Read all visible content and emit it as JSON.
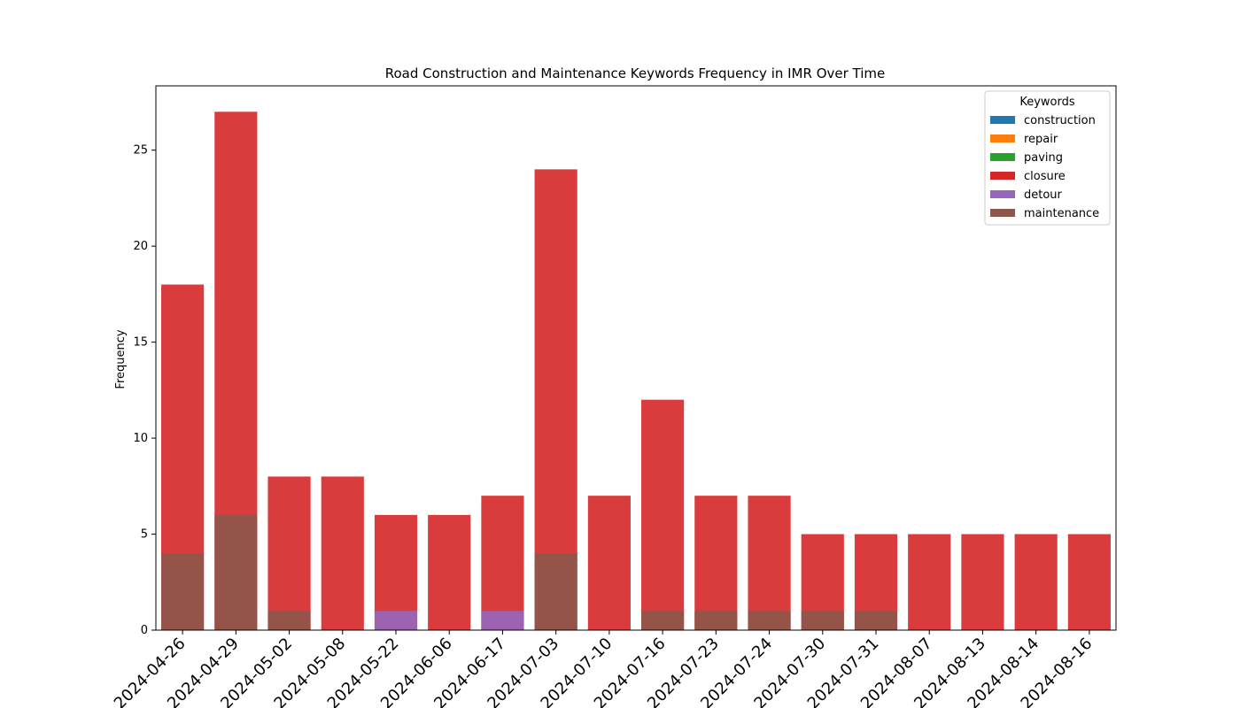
{
  "chart_data": {
    "type": "bar",
    "title": "Road Construction and Maintenance Keywords Frequency in IMR Over Time",
    "xlabel": "",
    "ylabel": "Frequency",
    "ylim": [
      0,
      28.35
    ],
    "yticks": [
      0,
      5,
      10,
      15,
      20,
      25
    ],
    "grid": false,
    "legend": {
      "title": "Keywords",
      "placement": "top-right"
    },
    "categories": [
      "2024-04-26",
      "2024-04-29",
      "2024-05-02",
      "2024-05-08",
      "2024-05-22",
      "2024-06-06",
      "2024-06-17",
      "2024-07-03",
      "2024-07-10",
      "2024-07-16",
      "2024-07-23",
      "2024-07-24",
      "2024-07-30",
      "2024-07-31",
      "2024-08-07",
      "2024-08-13",
      "2024-08-14",
      "2024-08-16"
    ],
    "series": [
      {
        "name": "construction",
        "color": "#1f77b4",
        "values": [
          0,
          0,
          0,
          0,
          0,
          0,
          0,
          0,
          0,
          0,
          0,
          0,
          0,
          0,
          0,
          0,
          0,
          0
        ]
      },
      {
        "name": "repair",
        "color": "#ff7f0e",
        "values": [
          0,
          0,
          0,
          0,
          0,
          0,
          0,
          0,
          0,
          0,
          0,
          0,
          0,
          0,
          0,
          0,
          0,
          0
        ]
      },
      {
        "name": "paving",
        "color": "#2ca02c",
        "values": [
          0,
          0,
          0,
          0,
          0,
          0,
          0,
          0,
          0,
          0,
          0,
          0,
          0,
          0,
          0,
          0,
          0,
          0
        ]
      },
      {
        "name": "closure",
        "color": "#d62728",
        "values": [
          18,
          27,
          8,
          8,
          6,
          6,
          7,
          24,
          7,
          12,
          7,
          7,
          5,
          5,
          5,
          5,
          5,
          5
        ]
      },
      {
        "name": "detour",
        "color": "#9467bd",
        "values": [
          0,
          0,
          0,
          0,
          1,
          0,
          1,
          0,
          0,
          0,
          0,
          0,
          0,
          0,
          0,
          0,
          0,
          0
        ]
      },
      {
        "name": "maintenance",
        "color": "#8c564b",
        "values": [
          4,
          6,
          1,
          0,
          0,
          0,
          0,
          4,
          0,
          1,
          1,
          1,
          1,
          1,
          0,
          0,
          0,
          0
        ]
      }
    ]
  }
}
